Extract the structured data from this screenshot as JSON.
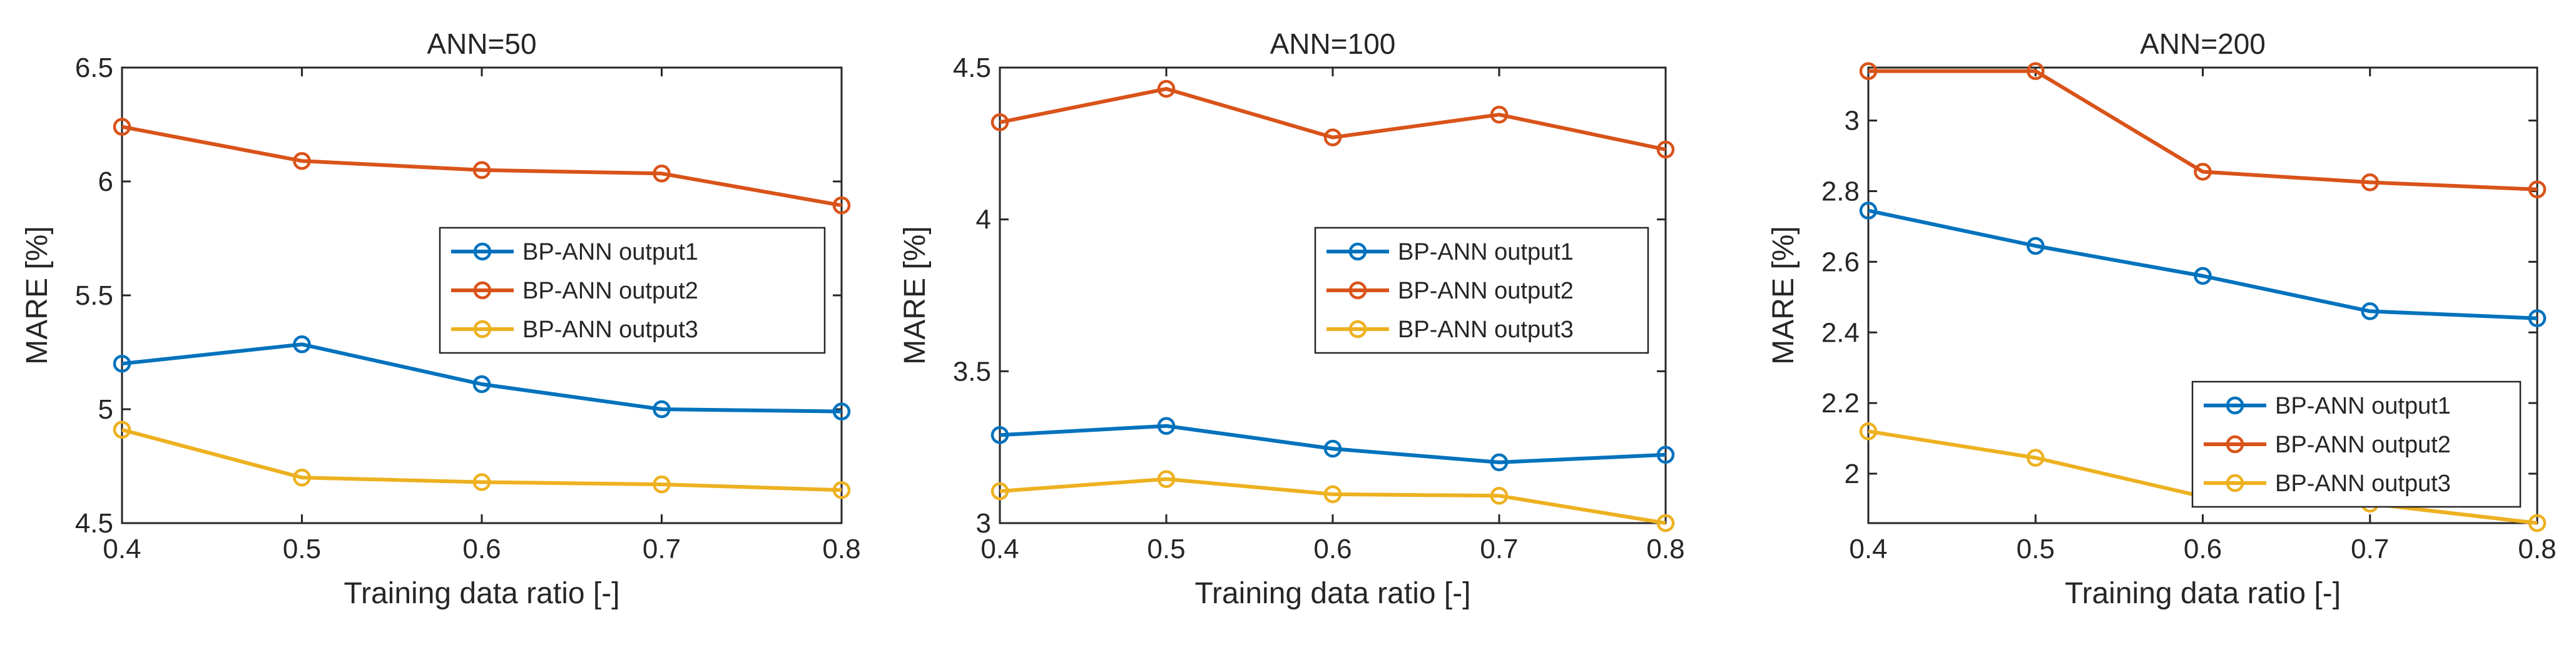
{
  "chart_data": [
    {
      "type": "line",
      "title": "ANN=50",
      "xlabel": "Training data ratio [-]",
      "ylabel": "MARE [%]",
      "x": [
        0.4,
        0.5,
        0.6,
        0.7,
        0.8
      ],
      "x_tick_labels": [
        "0.4",
        "0.5",
        "0.6",
        "0.7",
        "0.8"
      ],
      "xlim": [
        0.4,
        0.8
      ],
      "ylim": [
        4.5,
        6.5
      ],
      "y_ticks": [
        4.5,
        5,
        5.5,
        6,
        6.5
      ],
      "y_tick_labels": [
        "4.5",
        "5",
        "5.5",
        "6",
        "6.5"
      ],
      "legend_position": "middle-right",
      "series": [
        {
          "name": "BP-ANN output1",
          "color": "#0072BD",
          "values": [
            5.2,
            5.285,
            5.11,
            5.0,
            4.99
          ]
        },
        {
          "name": "BP-ANN output2",
          "color": "#D95319",
          "values": [
            6.24,
            6.09,
            6.05,
            6.035,
            5.895
          ]
        },
        {
          "name": "BP-ANN output3",
          "color": "#EDB120",
          "values": [
            4.91,
            4.7,
            4.68,
            4.67,
            4.645
          ]
        }
      ]
    },
    {
      "type": "line",
      "title": "ANN=100",
      "xlabel": "Training data ratio [-]",
      "ylabel": "MARE [%]",
      "x": [
        0.4,
        0.5,
        0.6,
        0.7,
        0.8
      ],
      "x_tick_labels": [
        "0.4",
        "0.5",
        "0.6",
        "0.7",
        "0.8"
      ],
      "xlim": [
        0.4,
        0.8
      ],
      "ylim": [
        3,
        4.5
      ],
      "y_ticks": [
        3,
        3.5,
        4,
        4.5
      ],
      "y_tick_labels": [
        "3",
        "3.5",
        "4",
        "4.5"
      ],
      "legend_position": "middle-right",
      "series": [
        {
          "name": "BP-ANN output1",
          "color": "#0072BD",
          "values": [
            3.29,
            3.32,
            3.245,
            3.2,
            3.225
          ]
        },
        {
          "name": "BP-ANN output2",
          "color": "#D95319",
          "values": [
            4.32,
            4.43,
            4.27,
            4.345,
            4.23
          ]
        },
        {
          "name": "BP-ANN output3",
          "color": "#EDB120",
          "values": [
            3.105,
            3.145,
            3.095,
            3.09,
            3.0
          ]
        }
      ]
    },
    {
      "type": "line",
      "title": "ANN=200",
      "xlabel": "Training data ratio [-]",
      "ylabel": "MARE [%]",
      "x": [
        0.4,
        0.5,
        0.6,
        0.7,
        0.8
      ],
      "x_tick_labels": [
        "0.4",
        "0.5",
        "0.6",
        "0.7",
        "0.8"
      ],
      "xlim": [
        0.4,
        0.8
      ],
      "ylim": [
        1.86,
        3.15
      ],
      "y_ticks": [
        2,
        2.2,
        2.4,
        2.6,
        2.8,
        3
      ],
      "y_tick_labels": [
        "2",
        "2.2",
        "2.4",
        "2.6",
        "2.8",
        "3"
      ],
      "legend_position": "bottom-right",
      "series": [
        {
          "name": "BP-ANN output1",
          "color": "#0072BD",
          "values": [
            2.745,
            2.645,
            2.56,
            2.46,
            2.44
          ]
        },
        {
          "name": "BP-ANN output2",
          "color": "#D95319",
          "values": [
            3.14,
            3.14,
            2.855,
            2.825,
            2.805
          ]
        },
        {
          "name": "BP-ANN output3",
          "color": "#EDB120",
          "values": [
            2.12,
            2.045,
            1.935,
            1.915,
            1.86
          ]
        }
      ]
    }
  ]
}
